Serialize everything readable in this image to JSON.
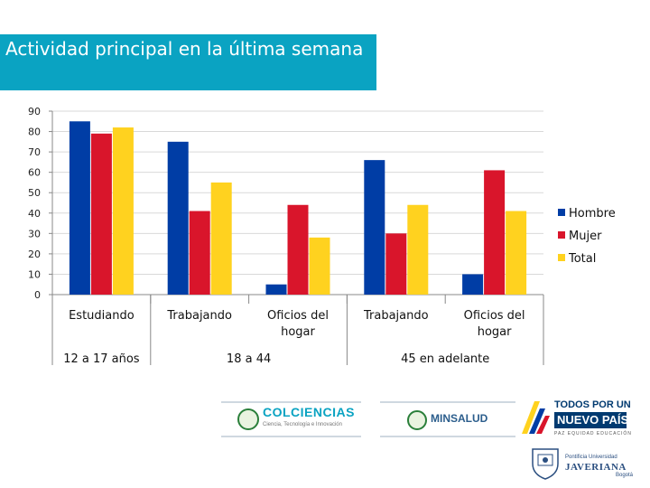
{
  "chart_data": {
    "type": "bar",
    "title": "Actividad principal en la última semana",
    "categories": [
      "Estudiando",
      "Trabajando",
      "Oficios del hogar",
      "Trabajando",
      "Oficios del hogar"
    ],
    "groups": [
      {
        "label": "12 a 17 años",
        "span": 1
      },
      {
        "label": "18 a 44",
        "span": 2
      },
      {
        "label": "45 en adelante",
        "span": 2
      }
    ],
    "series": [
      {
        "name": "Hombre",
        "color": "#003da5",
        "values": [
          85,
          75,
          5,
          66,
          10
        ]
      },
      {
        "name": "Mujer",
        "color": "#d9152b",
        "values": [
          79,
          41,
          44,
          30,
          61
        ]
      },
      {
        "name": "Total",
        "color": "#ffd21f",
        "values": [
          82,
          55,
          28,
          44,
          41
        ]
      }
    ],
    "ylim": [
      0,
      90
    ],
    "yticks": [
      0,
      10,
      20,
      30,
      40,
      50,
      60,
      70,
      80,
      90
    ],
    "grid": true,
    "legend": "right"
  },
  "logos": {
    "colciencias": "COLCIENCIAS",
    "colciencias_sub": "Ciencia, Tecnología e Innovación",
    "minsalud": "MINSALUD",
    "todos_line1": "TODOS POR UN",
    "todos_line2": "NUEVO PAÍS",
    "todos_line3": "PAZ  EQUIDAD  EDUCACIÓN",
    "javeriana_line1": "Pontificia Universidad",
    "javeriana_line2": "JAVERIANA",
    "javeriana_line3": "Bogotá"
  }
}
